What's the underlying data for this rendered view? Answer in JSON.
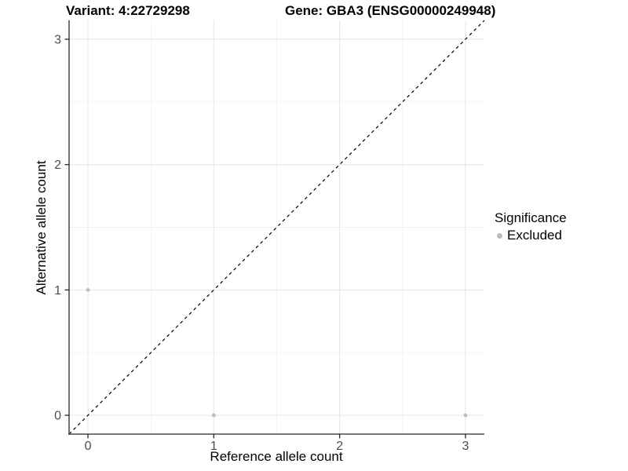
{
  "title": {
    "variant": "Variant: 4:22729298",
    "gene": "Gene: GBA3 (ENSG00000249948)"
  },
  "chart_data": {
    "type": "scatter",
    "title_left": "Variant: 4:22729298",
    "title_right": "Gene: GBA3 (ENSG00000249948)",
    "xlabel": "Reference allele count",
    "ylabel": "Alternative allele count",
    "xlim": [
      -0.15,
      3.15
    ],
    "ylim": [
      -0.15,
      3.15
    ],
    "xticks": [
      0,
      1,
      2,
      3
    ],
    "yticks": [
      0,
      1,
      2,
      3
    ],
    "minor_ticks_x": [
      0.5,
      1.5,
      2.5
    ],
    "minor_ticks_y": [
      0.5,
      1.5,
      2.5
    ],
    "grid": "on",
    "points": [
      {
        "x": 0,
        "y": 1,
        "significance": "Excluded"
      },
      {
        "x": 1,
        "y": 0,
        "significance": "Excluded"
      },
      {
        "x": 3,
        "y": 0,
        "significance": "Excluded"
      }
    ],
    "identity_line": {
      "type": "dashed",
      "from": [
        -0.15,
        -0.15
      ],
      "to": [
        3.15,
        3.15
      ],
      "color": "#000000"
    },
    "legend": {
      "position": "right",
      "title": "Significance",
      "entries": [
        {
          "label": "Excluded",
          "color": "#bdbdbd"
        }
      ]
    },
    "colors": {
      "point": "#bdbdbd",
      "grid_major": "#e7e7e7",
      "grid_minor": "#f2f2f2",
      "axis_line": "#4d4d4d",
      "tick_mark": "#333333",
      "tick_label": "#4d4d4d",
      "background": "#ffffff"
    }
  }
}
